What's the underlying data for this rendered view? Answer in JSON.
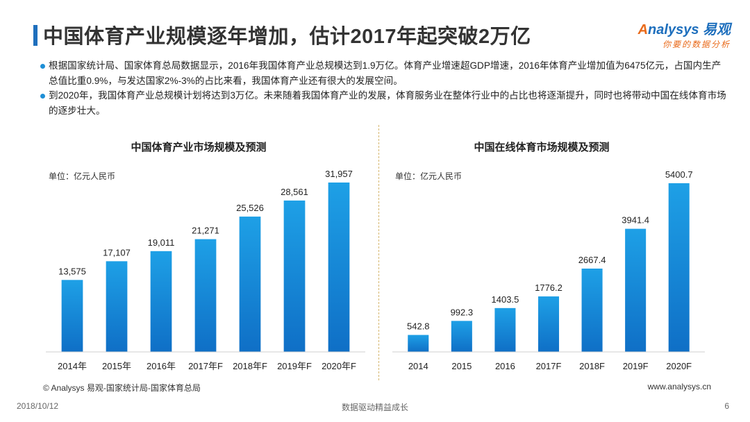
{
  "header": {
    "title": "中国体育产业规模逐年增加，估计2017年起突破2万亿",
    "logo_brand": "nalysys 易观",
    "logo_letter": "A",
    "logo_slogan": "你要的数据分析"
  },
  "bullets": [
    "根据国家统计局、国家体育总局数据显示，2016年我国体育产业总规模达到1.9万亿。体育产业增速超GDP增速，2016年体育产业增加值为6475亿元，占国内生产总值比重0.9%，与发达国家2%-3%的占比来看，我国体育产业还有很大的发展空间。",
    "到2020年，我国体育产业总规模计划将达到3万亿。未来随着我国体育产业的发展，体育服务业在整体行业中的占比也将逐渐提升，同时也将带动中国在线体育市场的逐步壮大。"
  ],
  "chart_data": [
    {
      "type": "bar",
      "title": "中国体育产业市场规模及预测",
      "unit": "单位：亿元人民币",
      "categories": [
        "2014年",
        "2015年",
        "2016年",
        "2017年F",
        "2018年F",
        "2019年F",
        "2020年F"
      ],
      "values": [
        13575,
        17107,
        19011,
        21271,
        25526,
        28561,
        31957
      ],
      "labels": [
        "13,575",
        "17,107",
        "19,011",
        "21,271",
        "25,526",
        "28,561",
        "31,957"
      ],
      "ylim": [
        0,
        33000
      ],
      "grid": false
    },
    {
      "type": "bar",
      "title": "中国在线体育市场规模及预测",
      "unit": "单位：亿元人民币",
      "categories": [
        "2014",
        "2015",
        "2016",
        "2017F",
        "2018F",
        "2019F",
        "2020F"
      ],
      "values": [
        542.8,
        992.3,
        1403.5,
        1776.2,
        2667.4,
        3941.4,
        5400.7
      ],
      "labels": [
        "542.8",
        "992.3",
        "1403.5",
        "1776.2",
        "2667.4",
        "3941.4",
        "5400.7"
      ],
      "ylim": [
        0,
        5600
      ],
      "grid": false
    }
  ],
  "colors": {
    "bar_top": "#1ea0e6",
    "bar_bottom": "#0f6fc6",
    "accent": "#1e6fbd",
    "divider": "#d6b66d"
  },
  "footer": {
    "source": "© Analysys 易观-国家统计局-国家体育总局",
    "website": "www.analysys.cn",
    "date": "2018/10/12",
    "slogan": "数据驱动精益成长",
    "page": "6"
  }
}
